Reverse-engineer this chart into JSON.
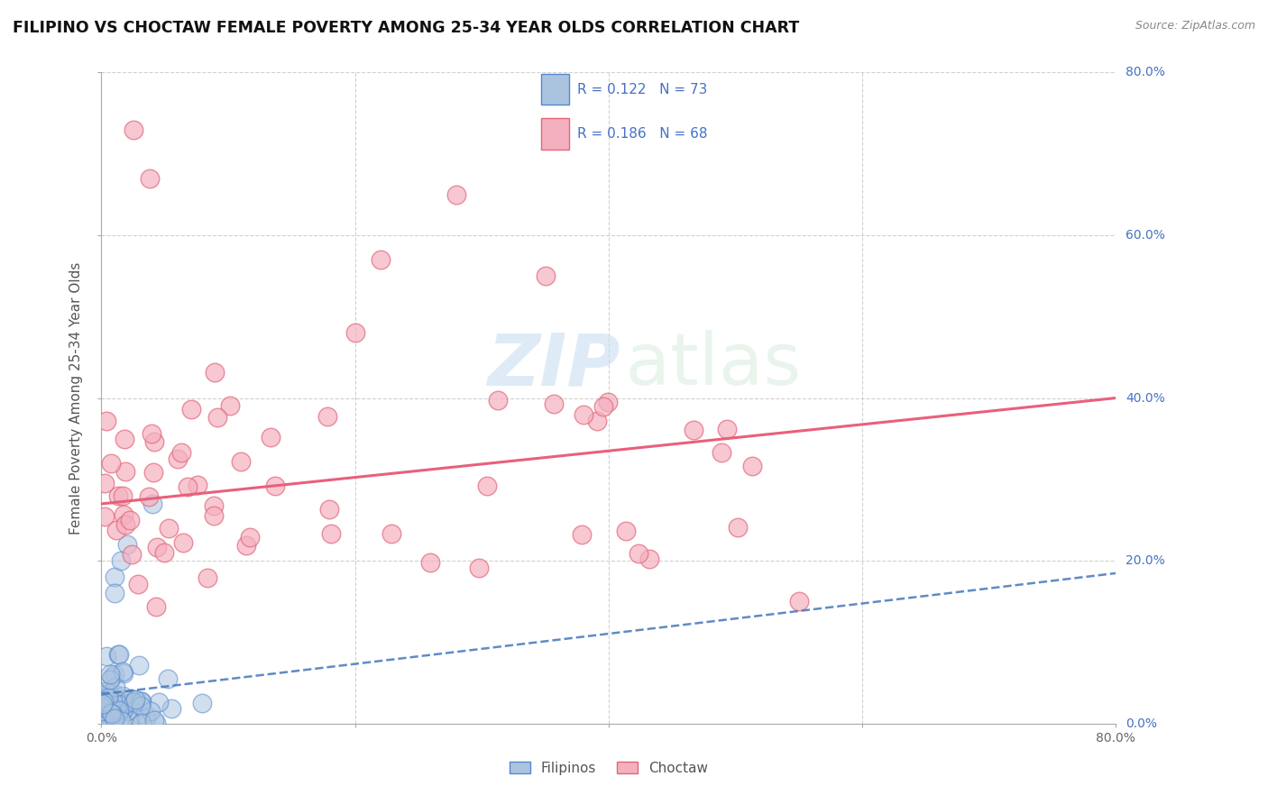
{
  "title": "FILIPINO VS CHOCTAW FEMALE POVERTY AMONG 25-34 YEAR OLDS CORRELATION CHART",
  "source_text": "Source: ZipAtlas.com",
  "ylabel": "Female Poverty Among 25-34 Year Olds",
  "xlim": [
    0.0,
    0.8
  ],
  "ylim": [
    0.0,
    0.8
  ],
  "xtick_labels": [
    "0.0%",
    "",
    "",
    "",
    "80.0%"
  ],
  "xtick_vals": [
    0.0,
    0.2,
    0.4,
    0.6,
    0.8
  ],
  "ytick_vals": [
    0.0,
    0.2,
    0.4,
    0.6,
    0.8
  ],
  "right_tick_labels": [
    "0.0%",
    "20.0%",
    "40.0%",
    "60.0%",
    "80.0%"
  ],
  "filipino_fill_color": "#aac4e0",
  "filipino_edge_color": "#5588cc",
  "choctaw_fill_color": "#f5b0c0",
  "choctaw_edge_color": "#e06878",
  "trendline_filipino_color": "#4477bb",
  "trendline_choctaw_color": "#e8607a",
  "R_filipino": 0.122,
  "N_filipino": 73,
  "R_choctaw": 0.186,
  "N_choctaw": 68,
  "watermark_zip": "ZIP",
  "watermark_atlas": "atlas",
  "background_color": "#ffffff",
  "grid_color": "#cccccc",
  "title_fontsize": 12.5,
  "axis_label_fontsize": 11,
  "tick_fontsize": 10,
  "right_tick_color": "#4472c4",
  "legend_r_n_color": "#4472c4"
}
